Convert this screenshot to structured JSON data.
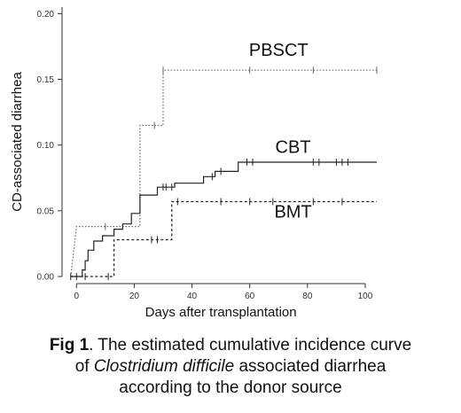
{
  "chart_data": {
    "type": "line",
    "xlabel": "Days after transplantation",
    "ylabel": "CD-associated diarrhea",
    "xlim": [
      -5,
      104
    ],
    "ylim": [
      0,
      0.205
    ],
    "x_ticks": [
      0,
      20,
      40,
      60,
      80,
      100
    ],
    "y_ticks": [
      0.0,
      0.05,
      0.1,
      0.15,
      0.2
    ],
    "x_tick_labels": [
      "0",
      "20",
      "40",
      "60",
      "80",
      "100"
    ],
    "y_tick_labels": [
      "0.00",
      "0.05",
      "0.10",
      "0.15",
      "0.20"
    ],
    "grid": false,
    "series": [
      {
        "name": "PBSCT",
        "style": "dotted",
        "color": "#666666",
        "steps": [
          [
            -2,
            0
          ],
          [
            0,
            0.038
          ],
          [
            22,
            0.038
          ],
          [
            22,
            0.115
          ],
          [
            30,
            0.115
          ],
          [
            30,
            0.157
          ],
          [
            104,
            0.157
          ]
        ],
        "censor_x": [
          10,
          27,
          30,
          60,
          82,
          104
        ]
      },
      {
        "name": "CBT",
        "style": "solid",
        "color": "#222222",
        "steps": [
          [
            -2,
            0
          ],
          [
            2,
            0
          ],
          [
            2,
            0.005
          ],
          [
            3,
            0.005
          ],
          [
            3,
            0.012
          ],
          [
            4,
            0.012
          ],
          [
            4,
            0.02
          ],
          [
            6,
            0.02
          ],
          [
            6,
            0.027
          ],
          [
            9,
            0.027
          ],
          [
            9,
            0.031
          ],
          [
            13,
            0.031
          ],
          [
            13,
            0.036
          ],
          [
            16,
            0.036
          ],
          [
            16,
            0.04
          ],
          [
            19,
            0.04
          ],
          [
            19,
            0.048
          ],
          [
            22,
            0.048
          ],
          [
            22,
            0.062
          ],
          [
            28,
            0.062
          ],
          [
            28,
            0.068
          ],
          [
            34,
            0.068
          ],
          [
            34,
            0.071
          ],
          [
            44,
            0.071
          ],
          [
            44,
            0.076
          ],
          [
            48,
            0.076
          ],
          [
            48,
            0.08
          ],
          [
            56,
            0.08
          ],
          [
            56,
            0.087
          ],
          [
            104,
            0.087
          ]
        ],
        "censor_x": [
          -2,
          0,
          30,
          31,
          33,
          47,
          50,
          59,
          61,
          82,
          84,
          90,
          92,
          94
        ]
      },
      {
        "name": "BMT",
        "style": "dashed",
        "color": "#222222",
        "steps": [
          [
            -2,
            0
          ],
          [
            13,
            0
          ],
          [
            13,
            0.028
          ],
          [
            33,
            0.028
          ],
          [
            33,
            0.057
          ],
          [
            104,
            0.057
          ]
        ],
        "censor_x": [
          3,
          11,
          26,
          28,
          35,
          50,
          60,
          68,
          82,
          92
        ]
      }
    ],
    "series_labels": [
      {
        "text": "PBSCT",
        "x": 70,
        "y": 0.168
      },
      {
        "text": "CBT",
        "x": 75,
        "y": 0.094
      },
      {
        "text": "BMT",
        "x": 75,
        "y": 0.045
      }
    ]
  },
  "caption": {
    "fig_label": "Fig 1",
    "line1": ". The estimated cumulative incidence curve",
    "line2_prefix": "of ",
    "line2_italic": "Clostridium difficile",
    "line2_suffix": " associated diarrhea",
    "line3": "according to the donor source"
  }
}
